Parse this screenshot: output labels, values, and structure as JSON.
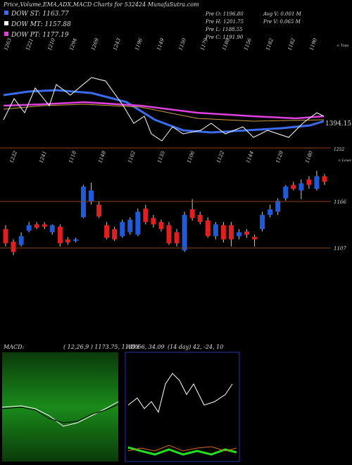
{
  "chart_data": {
    "type": "candlestick",
    "title": "Price,Volume,EMA,ADX,MACD Charts for 532424 MunafaSutra.com",
    "legend": [
      {
        "name": "DOW ST: 1163.77",
        "color": "#3b6cf0"
      },
      {
        "name": "DOW MT: 1157.88",
        "color": "#ffffff"
      },
      {
        "name": "DOW PT: 1177.19",
        "color": "#e040e0"
      }
    ],
    "info": [
      "Pre O: 1196.80",
      "Pre H: 1201.75",
      "Pre L: 1188.55",
      "Pre C: 1191.90",
      "Avg V: 0.001 M",
      "Pre V: 0.065 M"
    ],
    "top_labels": [
      "1263",
      "1221",
      "1210",
      "1294",
      "1269",
      "1243",
      "1196",
      "1149",
      "1150",
      "1179",
      "1188",
      "1156",
      "1182",
      "1182",
      "1190"
    ],
    "tops_note": "< Tops",
    "ema_label": "1394.15",
    "lows_top": "1252",
    "lows_note": "< Lows",
    "low_labels": [
      "1232",
      "1241",
      "1118",
      "1148",
      "1162",
      "1135",
      "1106",
      "1122",
      "1144",
      "1129",
      "1180"
    ],
    "ylim": [
      1082,
      1225
    ],
    "levels": [
      1166,
      1107
    ],
    "up_color": "#1f5bd8",
    "down_color": "#e02020",
    "open": [
      1131,
      1115,
      1111,
      1129,
      1137,
      1137,
      1127,
      1134,
      1118,
      1116,
      1146,
      1166,
      1162,
      1136,
      1131,
      1122,
      1127,
      1124,
      1157,
      1145,
      1140,
      1136,
      1127,
      1104,
      1156,
      1149,
      1142,
      1122,
      1136,
      1136,
      1122,
      1128,
      1121,
      1131,
      1149,
      1153,
      1170,
      1187,
      1180,
      1194,
      1182,
      1198
    ],
    "high": [
      1136,
      1118,
      1127,
      1140,
      1140,
      1140,
      1137,
      1137,
      1121,
      1120,
      1187,
      1190,
      1166,
      1140,
      1134,
      1143,
      1146,
      1157,
      1162,
      1149,
      1143,
      1140,
      1131,
      1153,
      1169,
      1153,
      1146,
      1140,
      1140,
      1140,
      1131,
      1131,
      1124,
      1153,
      1162,
      1170,
      1187,
      1191,
      1194,
      1198,
      1205,
      1201
    ],
    "low": [
      1109,
      1098,
      1109,
      1127,
      1131,
      1131,
      1124,
      1109,
      1111,
      1114,
      1145,
      1162,
      1145,
      1118,
      1116,
      1120,
      1124,
      1122,
      1137,
      1133,
      1128,
      1111,
      1109,
      1102,
      1142,
      1137,
      1120,
      1118,
      1114,
      1109,
      1118,
      1120,
      1109,
      1128,
      1146,
      1149,
      1167,
      1180,
      1169,
      1182,
      1180,
      1187
    ],
    "close": [
      1113,
      1102,
      1122,
      1136,
      1133,
      1134,
      1136,
      1113,
      1114,
      1118,
      1185,
      1180,
      1147,
      1120,
      1118,
      1140,
      1143,
      1153,
      1140,
      1137,
      1131,
      1113,
      1113,
      1149,
      1145,
      1140,
      1122,
      1137,
      1118,
      1118,
      1127,
      1124,
      1118,
      1149,
      1156,
      1167,
      1185,
      1182,
      1189,
      1187,
      1198,
      1191
    ],
    "macd_title": "MACD:",
    "macd_params": "( 12,26,9 ) 1173.75, 1139.66, 34.09",
    "adx_title": "ADX",
    "adx_params": "(14 day) 42, -24, 10"
  }
}
